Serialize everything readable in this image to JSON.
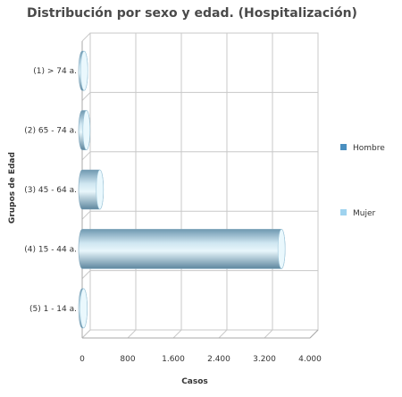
{
  "chart_data": {
    "type": "bar",
    "orientation": "horizontal",
    "title": "Distribución por sexo y edad. (Hospitalización)",
    "xlabel": "Casos",
    "ylabel": "Grupos de Edad",
    "categories": [
      "(1) > 74 a.",
      "(2) 65 - 74 a.",
      "(3) 45 - 64 a.",
      "(4) 15 - 44 a.",
      "(5) 1 - 14 a."
    ],
    "series": [
      {
        "name": "Hombre",
        "values": [
          0,
          0,
          0,
          0,
          0
        ],
        "color": "#4a8fc0"
      },
      {
        "name": "Mujer",
        "values": [
          35,
          75,
          310,
          3500,
          25
        ],
        "color": "#9fd3ef"
      }
    ],
    "xlim": [
      0,
      4000
    ],
    "xticks": [
      "0",
      "800",
      "1.600",
      "2.400",
      "3.200",
      "4.000"
    ],
    "grid": true,
    "legend_position": "right"
  }
}
